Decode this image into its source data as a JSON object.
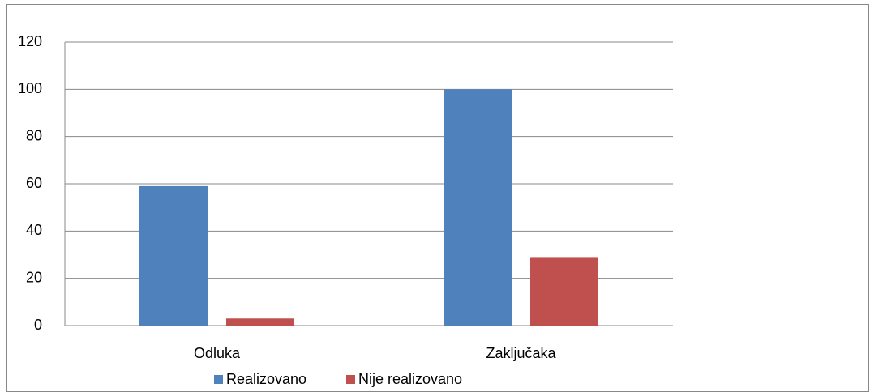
{
  "chart_data": {
    "type": "bar",
    "categories": [
      "Odluka",
      "Zaključaka"
    ],
    "series": [
      {
        "name": "Realizovano",
        "color": "#4f81bd",
        "values": [
          59,
          100
        ]
      },
      {
        "name": "Nije realizovano",
        "color": "#c0504d",
        "values": [
          3,
          29
        ]
      }
    ],
    "ylim": [
      0,
      120
    ],
    "yticks": [
      0,
      20,
      40,
      60,
      80,
      100,
      120
    ],
    "grid": true,
    "legend": "bottom"
  }
}
